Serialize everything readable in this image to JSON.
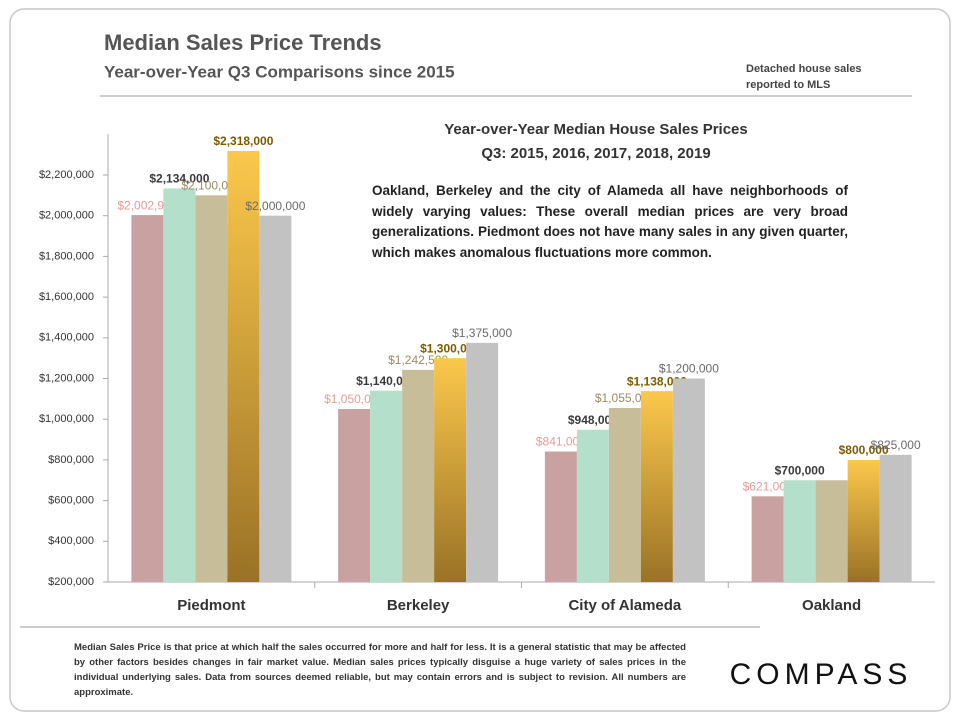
{
  "title": "Median Sales Price Trends",
  "subtitle": "Year-over-Year  Q3 Comparisons  since 2015",
  "note": [
    "Detached house sales",
    "reported to MLS"
  ],
  "logo": "COMPASS",
  "footnote": "Median Sales Price is that price at which half the sales occurred for more and half for less. It is a general statistic that may be affected by other factors besides changes in fair market value. Median sales prices typically disguise a huge variety of sales prices in the individual underlying sales. Data from sources deemed reliable, but may contain errors and is subject to revision.  All numbers are approximate.",
  "chart_data": {
    "type": "bar",
    "title": [
      "Year-over-Year Median House Sales Prices",
      "Q3: 2015, 2016, 2017, 2018, 2019"
    ],
    "annotation": "Oakland, Berkeley and the city of Alameda all have neighborhoods of widely varying values: These overall median prices are very broad generalizations. Piedmont does not have many sales in any given quarter, which makes anomalous fluctuations more common.",
    "categories": [
      "Piedmont",
      "Berkeley",
      "City of Alameda",
      "Oakland"
    ],
    "series": [
      {
        "color": "#c9a1a1",
        "label_color": "#e79a9a",
        "values": [
          2002906,
          1050000,
          841000,
          621000
        ],
        "value_labels": [
          "$2,002,906",
          "$1,050,000",
          "$841,000",
          "$621,000"
        ]
      },
      {
        "color": "#b3dfcb",
        "label_color": "#3a3a3a",
        "values": [
          2134000,
          1140000,
          948000,
          700000
        ],
        "value_labels": [
          "$2,134,000",
          "$1,140,000",
          "$948,000",
          "$700,000"
        ]
      },
      {
        "color": "#c8bd99",
        "label_color": "#9a8a66",
        "values": [
          2100000,
          1242500,
          1055000,
          700000
        ],
        "value_labels": [
          "$2,100,000",
          "$1,242,500",
          "$1,055,000",
          null
        ]
      },
      {
        "color": "#fbc84c",
        "label_color": "#7a5c00",
        "values": [
          2318000,
          1300000,
          1138000,
          800000
        ],
        "value_labels": [
          "$2,318,000",
          "$1,300,000",
          "$1,138,000",
          "$800,000"
        ]
      },
      {
        "color": "#c2c2c2",
        "label_color": "#6a6a6a",
        "values": [
          2000000,
          1375000,
          1200000,
          825000
        ],
        "value_labels": [
          "$2,000,000",
          "$1,375,000",
          "$1,200,000",
          "$825,000"
        ]
      }
    ],
    "ylim": [
      200000,
      2400000
    ],
    "yticks": [
      {
        "value": 200000,
        "label": "$200,000"
      },
      {
        "value": 400000,
        "label": "$400,000"
      },
      {
        "value": 600000,
        "label": "$600,000"
      },
      {
        "value": 800000,
        "label": "$800,000"
      },
      {
        "value": 1000000,
        "label": "$1,000,000"
      },
      {
        "value": 1200000,
        "label": "$1,200,000"
      },
      {
        "value": 1400000,
        "label": "$1,400,000"
      },
      {
        "value": 1600000,
        "label": "$1,600,000"
      },
      {
        "value": 1800000,
        "label": "$1,800,000"
      },
      {
        "value": 2000000,
        "label": "$2,000,000"
      },
      {
        "value": 2200000,
        "label": "$2,200,000"
      }
    ],
    "grid": false
  }
}
